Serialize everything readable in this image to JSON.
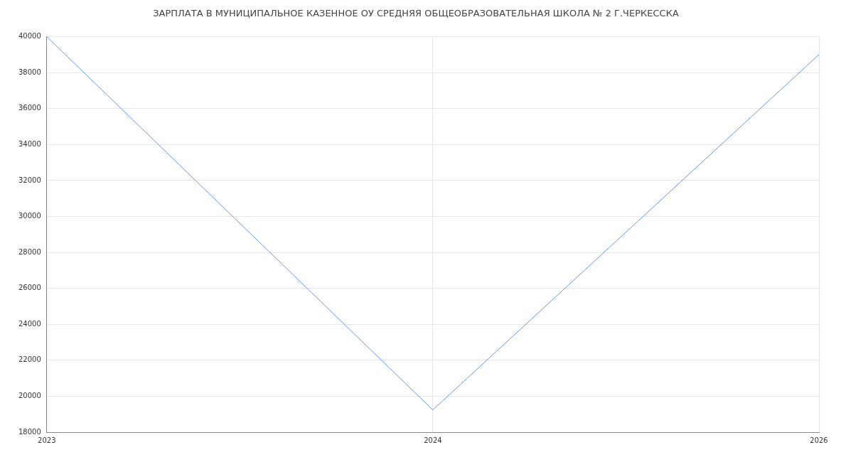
{
  "chart_data": {
    "type": "line",
    "title": "ЗАРПЛАТА В МУНИЦИПАЛЬНОЕ КАЗЕННОЕ ОУ СРЕДНЯЯ ОБЩЕОБРАЗОВАТЕЛЬНАЯ ШКОЛА № 2 Г.ЧЕРКЕССКА",
    "categories": [
      "2023",
      "2024",
      "2026"
    ],
    "series": [
      {
        "color": "#6495ed",
        "values": [
          40000,
          19240,
          39000
        ]
      }
    ],
    "ylim": [
      18000,
      40000
    ],
    "yticks": [
      18000,
      20000,
      22000,
      24000,
      26000,
      28000,
      30000,
      32000,
      34000,
      36000,
      38000,
      40000
    ],
    "grid": true,
    "marker": "none",
    "line_style": "solid",
    "legend": false
  }
}
